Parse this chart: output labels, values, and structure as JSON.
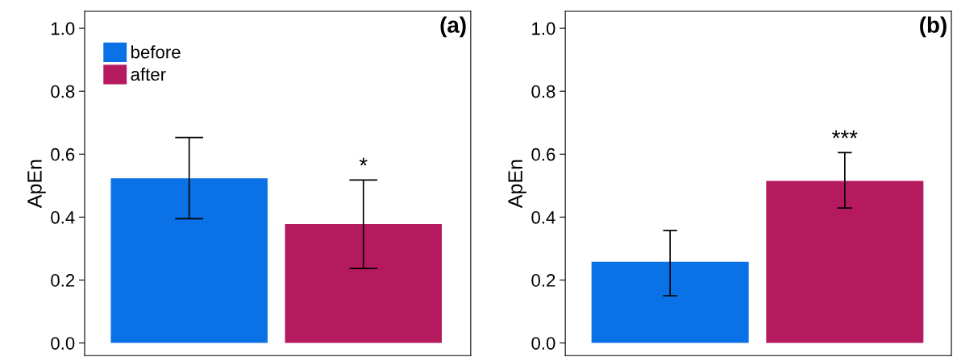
{
  "chart_data": [
    {
      "type": "bar",
      "title": "(a)",
      "ylabel": "ApEn",
      "categories": [
        null
      ],
      "ylim": [
        -0.04,
        1.054
      ],
      "yticks": [
        {
          "value": 0,
          "label": "0.0"
        },
        {
          "value": 0.2,
          "label": "0.2"
        },
        {
          "value": 0.4,
          "label": "0.4"
        },
        {
          "value": 0.6,
          "label": "0.6"
        },
        {
          "value": 0.8,
          "label": "0.8"
        },
        {
          "value": 1,
          "label": "1.0"
        }
      ],
      "grid": false,
      "legend": "top left",
      "tick_labels": "y",
      "series": [
        {
          "name": "before",
          "color": "#0a72e6",
          "values": [
            0.523
          ],
          "errors": [
            [
              0.395,
              0.653
            ]
          ]
        },
        {
          "name": "after",
          "color": "#b5195e",
          "values": [
            0.378
          ],
          "errors": [
            [
              0.237,
              0.518
            ]
          ],
          "value_labels": [
            "*"
          ]
        }
      ]
    },
    {
      "type": "bar",
      "title": "(b)",
      "ylabel": "ApEn",
      "categories": [
        null,
        null
      ],
      "ylim": [
        -0.04,
        1.054
      ],
      "yticks": [
        {
          "value": 0,
          "label": "0.0"
        },
        {
          "value": 0.2,
          "label": "0.2"
        },
        {
          "value": 0.4,
          "label": "0.4"
        },
        {
          "value": 0.6,
          "label": "0.6"
        },
        {
          "value": 0.8,
          "label": "0.8"
        },
        {
          "value": 1,
          "label": "1.0"
        }
      ],
      "grid": false,
      "tick_labels": "y",
      "values": [
        0.258,
        0.515
      ],
      "colors": [
        "#0a72e6",
        "#b5195e"
      ],
      "errors": [
        [
          0.15,
          0.357
        ],
        [
          0.429,
          0.605
        ]
      ],
      "value_labels": [
        null,
        "***"
      ]
    }
  ]
}
